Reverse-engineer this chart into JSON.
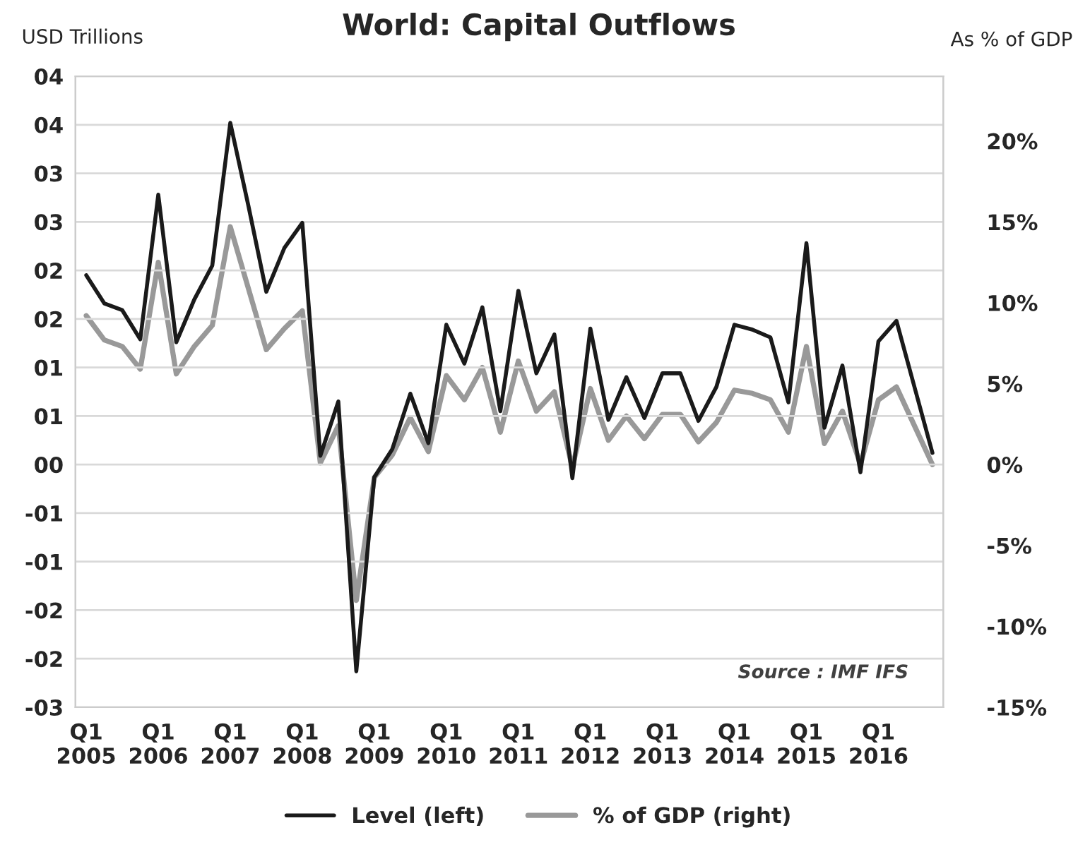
{
  "chart_data": {
    "type": "line",
    "title": "World: Capital Outflows",
    "ylabel": "USD Trillions",
    "y2label": "As % of GDP",
    "categories": [
      "Q1\n2005",
      null,
      null,
      null,
      "Q1\n2006",
      null,
      null,
      null,
      "Q1\n2007",
      null,
      null,
      null,
      "Q1\n2008",
      null,
      null,
      null,
      "Q1\n2009",
      null,
      null,
      null,
      "Q1\n2010",
      null,
      null,
      null,
      "Q1\n2011",
      null,
      null,
      null,
      "Q1\n2012",
      null,
      null,
      null,
      "Q1\n2013",
      null,
      null,
      null,
      "Q1\n2014",
      null,
      null,
      null,
      "Q1\n2015",
      null,
      null,
      null,
      "Q1\n2016",
      null,
      null,
      null
    ],
    "series": [
      {
        "name": "Level (left)",
        "color": "#1a1a1a",
        "values": [
          1.95,
          1.66,
          1.59,
          1.29,
          2.78,
          1.26,
          1.7,
          2.05,
          3.52,
          2.67,
          1.78,
          2.23,
          2.49,
          0.09,
          0.65,
          -2.13,
          -0.13,
          0.16,
          0.73,
          0.22,
          1.44,
          1.04,
          1.62,
          0.55,
          1.79,
          0.94,
          1.34,
          -0.14,
          1.4,
          0.46,
          0.9,
          0.48,
          0.94,
          0.94,
          0.45,
          0.8,
          1.44,
          1.39,
          1.31,
          0.64,
          2.28,
          0.38,
          1.02,
          -0.08,
          1.27,
          1.48,
          0.8,
          0.12
        ]
      },
      {
        "name": "% of GDP (right)",
        "color": "#999999",
        "axis": "y2",
        "values": [
          9.2,
          7.7,
          7.3,
          5.9,
          12.5,
          5.6,
          7.3,
          8.6,
          14.7,
          10.9,
          7.1,
          8.4,
          9.5,
          0.1,
          2.4,
          -8.4,
          -0.8,
          0.6,
          2.9,
          0.8,
          5.5,
          4.0,
          6.0,
          2.0,
          6.4,
          3.3,
          4.5,
          -0.2,
          4.7,
          1.5,
          3.0,
          1.6,
          3.1,
          3.1,
          1.4,
          2.6,
          4.6,
          4.4,
          4.0,
          2.0,
          7.3,
          1.3,
          3.3,
          0.0,
          4.0,
          4.8,
          2.4,
          0.0
        ]
      }
    ],
    "ylim": [
      -2.5,
      4.0
    ],
    "yticks": [
      {
        "value": -2.5,
        "label": "-03"
      },
      {
        "value": -2.0,
        "label": "-02"
      },
      {
        "value": -1.5,
        "label": "-02"
      },
      {
        "value": -1.0,
        "label": "-01"
      },
      {
        "value": -0.5,
        "label": "-01"
      },
      {
        "value": 0,
        "label": "00"
      },
      {
        "value": 0.5,
        "label": "01"
      },
      {
        "value": 1.0,
        "label": "01"
      },
      {
        "value": 1.5,
        "label": "02"
      },
      {
        "value": 2.0,
        "label": "02"
      },
      {
        "value": 2.5,
        "label": "03"
      },
      {
        "value": 3.0,
        "label": "03"
      },
      {
        "value": 3.5,
        "label": "04"
      },
      {
        "value": 4.0,
        "label": "04"
      }
    ],
    "y2lim": [
      -15,
      24
    ],
    "y2ticks": [
      {
        "value": -15,
        "label": "-15%"
      },
      {
        "value": -10,
        "label": "-10%"
      },
      {
        "value": -5,
        "label": "-5%"
      },
      {
        "value": 0,
        "label": "0%"
      },
      {
        "value": 5,
        "label": "5%"
      },
      {
        "value": 10,
        "label": "10%"
      },
      {
        "value": 15,
        "label": "15%"
      },
      {
        "value": 20,
        "label": "20%"
      }
    ],
    "annotations": [
      "Source : IMF IFS"
    ],
    "grid": "y",
    "legend": "bottom",
    "marker": "none",
    "line_style": "solid"
  }
}
